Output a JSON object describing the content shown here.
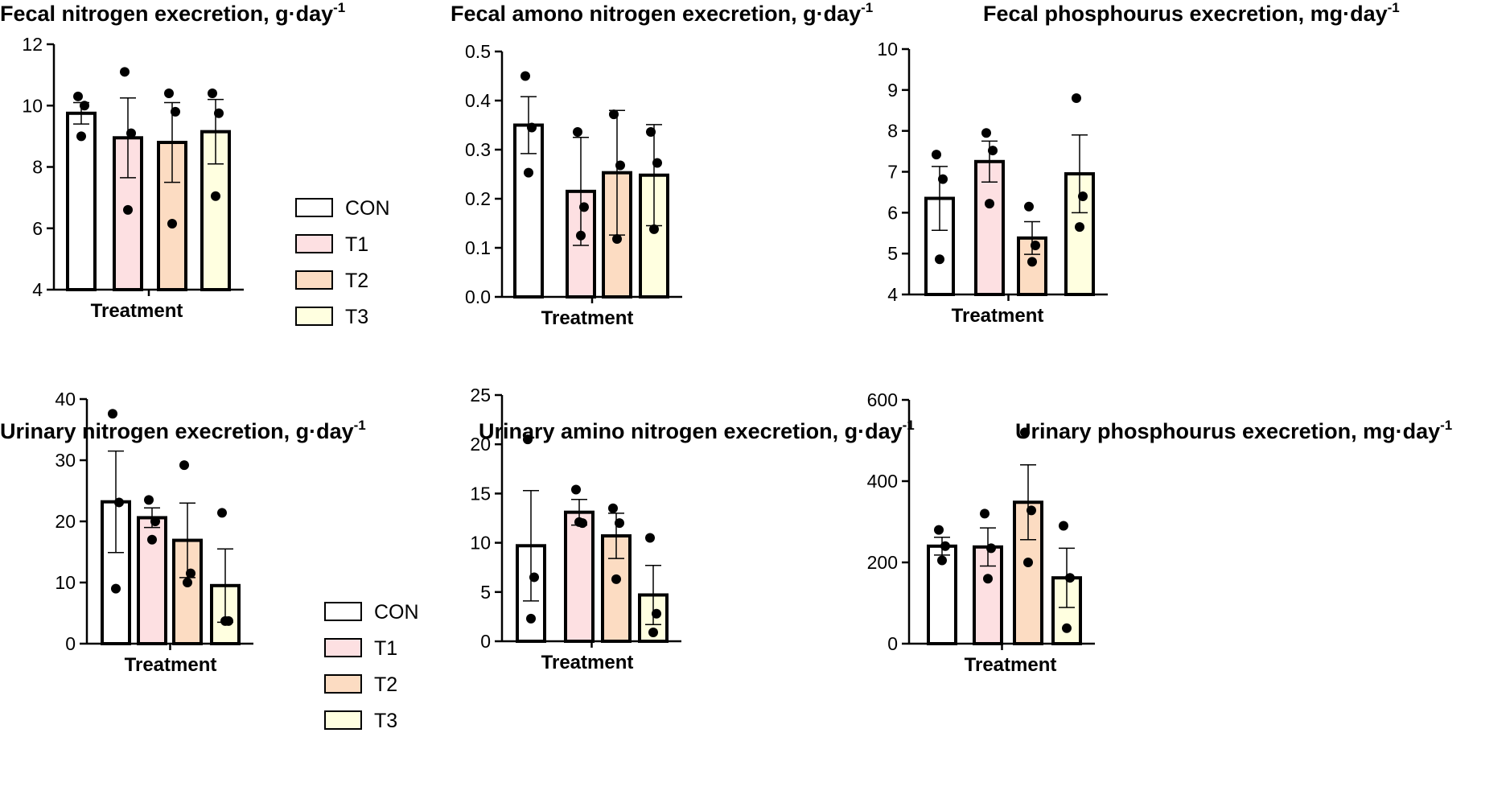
{
  "chart_data": [
    {
      "type": "bar",
      "title": "Fecal nitrogen execretion, g·day",
      "title_sup": "-1",
      "xlabel": "Treatment",
      "ylabel": "",
      "categories": [
        "CON",
        "T1",
        "T2",
        "T3"
      ],
      "values": [
        9.75,
        8.95,
        8.8,
        9.15
      ],
      "error": [
        0.35,
        1.3,
        1.3,
        1.05
      ],
      "points": [
        [
          10.3,
          10.0,
          9.0
        ],
        [
          11.1,
          9.1,
          6.6
        ],
        [
          10.4,
          9.8,
          6.15
        ],
        [
          10.4,
          9.75,
          7.05
        ]
      ],
      "ylim": [
        4,
        12
      ],
      "yticks": [
        "4",
        "6",
        "8",
        "10",
        "12"
      ],
      "legend": "right",
      "grid": false
    },
    {
      "type": "bar",
      "title": "Fecal amono nitrogen execretion, g·day",
      "title_sup": "-1",
      "xlabel": "Treatment",
      "ylabel": "",
      "categories": [
        "CON",
        "T1",
        "T2",
        "T3"
      ],
      "values": [
        0.35,
        0.215,
        0.253,
        0.248
      ],
      "error": [
        0.058,
        0.11,
        0.127,
        0.103
      ],
      "points": [
        [
          0.45,
          0.345,
          0.253
        ],
        [
          0.336,
          0.183,
          0.125
        ],
        [
          0.372,
          0.268,
          0.118
        ],
        [
          0.336,
          0.273,
          0.138
        ]
      ],
      "ylim": [
        0,
        0.5
      ],
      "yticks": [
        "0.0",
        "0.1",
        "0.2",
        "0.3",
        "0.4",
        "0.5"
      ],
      "grid": false
    },
    {
      "type": "bar",
      "title": "Fecal phosphourus execretion, mg·day",
      "title_sup": "-1",
      "xlabel": "Treatment",
      "ylabel": "",
      "categories": [
        "CON",
        "T1",
        "T2",
        "T3"
      ],
      "values": [
        6.35,
        7.25,
        5.38,
        6.95
      ],
      "error": [
        0.78,
        0.5,
        0.4,
        0.95
      ],
      "points": [
        [
          7.42,
          6.82,
          4.86
        ],
        [
          7.95,
          7.52,
          6.22
        ],
        [
          6.15,
          5.2,
          4.8
        ],
        [
          8.8,
          6.4,
          5.65
        ]
      ],
      "ylim": [
        4,
        10
      ],
      "yticks": [
        "4",
        "5",
        "6",
        "7",
        "8",
        "9",
        "10"
      ],
      "grid": false
    },
    {
      "type": "bar",
      "title": "Urinary nitrogen execretion, g·day",
      "title_sup": "-1",
      "xlabel": "Treatment",
      "ylabel": "",
      "categories": [
        "CON",
        "T1",
        "T2",
        "T3"
      ],
      "values": [
        23.2,
        20.6,
        16.9,
        9.5
      ],
      "error": [
        8.3,
        1.6,
        6.1,
        6.0
      ],
      "points": [
        [
          37.6,
          23.1,
          9.0
        ],
        [
          23.5,
          20.0,
          17.0
        ],
        [
          29.2,
          11.5,
          10.0
        ],
        [
          21.4,
          3.7,
          3.7
        ]
      ],
      "ylim": [
        0,
        40
      ],
      "yticks": [
        "0",
        "10",
        "20",
        "30",
        "40"
      ],
      "legend": "right",
      "grid": false
    },
    {
      "type": "bar",
      "title": "Urinary amino nitrogen execretion, g·day",
      "title_sup": "-1",
      "xlabel": "Treatment",
      "ylabel": "",
      "categories": [
        "CON",
        "T1",
        "T2",
        "T3"
      ],
      "values": [
        9.7,
        13.1,
        10.7,
        4.7
      ],
      "error": [
        5.6,
        1.3,
        2.3,
        3.0
      ],
      "points": [
        [
          20.5,
          6.5,
          2.3
        ],
        [
          15.4,
          12.0,
          12.1
        ],
        [
          13.5,
          12.0,
          6.3
        ],
        [
          10.5,
          2.8,
          0.9
        ]
      ],
      "ylim": [
        0,
        25
      ],
      "yticks": [
        "0",
        "5",
        "10",
        "15",
        "20",
        "25"
      ],
      "grid": false
    },
    {
      "type": "bar",
      "title": "Urinary phosphourus execretion, mg·day",
      "title_sup": "-1",
      "xlabel": "Treatment",
      "ylabel": "",
      "categories": [
        "CON",
        "T1",
        "T2",
        "T3"
      ],
      "values": [
        240,
        238,
        348,
        162
      ],
      "error": [
        22,
        47,
        92,
        73
      ],
      "points": [
        [
          280,
          240,
          205
        ],
        [
          320,
          235,
          160
        ],
        [
          520,
          328,
          200
        ],
        [
          290,
          162,
          38
        ]
      ],
      "ylim": [
        0,
        600
      ],
      "yticks": [
        "0",
        "200",
        "400",
        "600"
      ],
      "grid": false
    }
  ],
  "colors": {
    "CON": "#ffffff",
    "T1": "#fde0e2",
    "T2": "#fcdcc2",
    "T3": "#ffffe0",
    "stroke": "#000000",
    "point": "#000000"
  }
}
